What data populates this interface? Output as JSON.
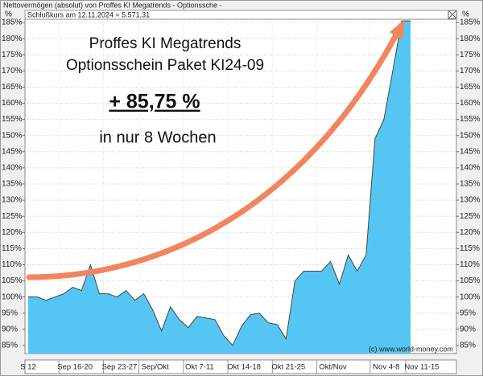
{
  "chart_data": {
    "type": "area",
    "title": "Nettovermögen (absolut) von Proffes KI Megatrends - Optionssche -",
    "subtitle": "Schlußkurs am 12.11.2024 = 5.571,31",
    "annotations": [
      "Proffes KI Megatrends",
      "Optionsschein Paket KI24-09",
      "+ 85,75 %",
      "in nur 8 Wochen",
      "(c) www.world-money.com"
    ],
    "ylabel": "%",
    "y2label": "%",
    "categories": [
      "S 12",
      null,
      null,
      null,
      "Sep 16-20",
      null,
      null,
      null,
      null,
      "Sep 23-27",
      null,
      null,
      null,
      "Sep/Okt",
      null,
      null,
      null,
      null,
      "Okt 7-11",
      null,
      null,
      null,
      null,
      "Okt 14-18",
      null,
      null,
      null,
      null,
      "Okt 21-25",
      null,
      null,
      null,
      null,
      "Okt/Nov",
      null,
      null,
      null,
      null,
      null,
      "Nov 4-8",
      null,
      null,
      null,
      "Nov 11-15"
    ],
    "values": [
      100,
      100,
      99,
      100,
      101,
      103,
      102,
      110,
      101,
      101,
      100,
      102,
      99,
      101,
      96,
      89.5,
      97,
      93,
      90.5,
      94,
      93.5,
      93,
      88,
      85,
      91,
      94.5,
      95,
      92,
      91.5,
      87,
      105,
      108,
      108,
      108,
      111,
      104,
      113,
      108,
      113,
      149,
      155,
      170,
      185.5,
      185.5
    ],
    "color": "#55c6f4",
    "ylim": [
      82.5,
      186
    ],
    "yticks": [
      {
        "value": 85,
        "label": "85%"
      },
      {
        "value": 90,
        "label": "90%"
      },
      {
        "value": 95,
        "label": "95%"
      },
      {
        "value": 100,
        "label": "100%"
      },
      {
        "value": 105,
        "label": "105%"
      },
      {
        "value": 110,
        "label": "110%"
      },
      {
        "value": 115,
        "label": "115%"
      },
      {
        "value": 120,
        "label": "120%"
      },
      {
        "value": 125,
        "label": "125%"
      },
      {
        "value": 130,
        "label": "130%"
      },
      {
        "value": 135,
        "label": "135%"
      },
      {
        "value": 140,
        "label": "140%"
      },
      {
        "value": 145,
        "label": "145%"
      },
      {
        "value": 150,
        "label": "150%"
      },
      {
        "value": 155,
        "label": "155%"
      },
      {
        "value": 160,
        "label": "160%"
      },
      {
        "value": 165,
        "label": "165%"
      },
      {
        "value": 170,
        "label": "170%"
      },
      {
        "value": 175,
        "label": "175%"
      },
      {
        "value": 180,
        "label": "180%"
      },
      {
        "value": 185,
        "label": "185%"
      }
    ],
    "grid": true
  }
}
